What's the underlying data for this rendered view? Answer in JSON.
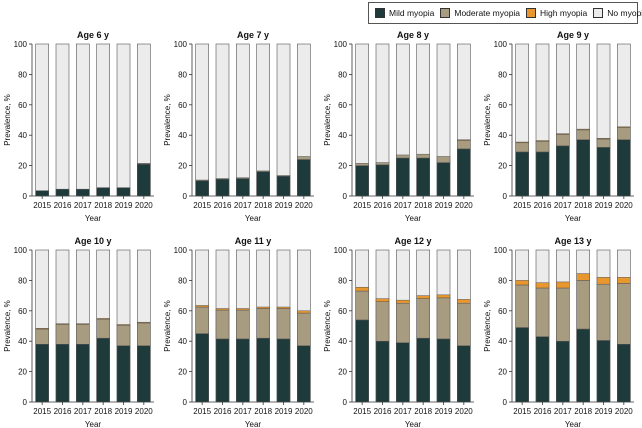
{
  "colors": {
    "mild": "#1f3a3a",
    "moderate": "#a89c80",
    "high": "#e8962e",
    "none": "#ececec",
    "stroke": "#555555"
  },
  "legend": [
    {
      "key": "mild",
      "label": "Mild myopia"
    },
    {
      "key": "moderate",
      "label": "Moderate myopia"
    },
    {
      "key": "high",
      "label": "High myopia"
    },
    {
      "key": "none",
      "label": "No myopia"
    }
  ],
  "chart_data": [
    {
      "type": "bar",
      "stacked": true,
      "title": "Age 6 y",
      "xlabel": "Year",
      "ylabel": "Prevalence, %",
      "ylim": [
        0,
        100
      ],
      "yticks": [
        0,
        20,
        40,
        60,
        80,
        100
      ],
      "categories": [
        "2015",
        "2016",
        "2017",
        "2018",
        "2019",
        "2020"
      ],
      "series": [
        {
          "name": "Mild myopia",
          "key": "mild",
          "values": [
            3.5,
            4.5,
            4.5,
            5.5,
            5.5,
            21
          ]
        },
        {
          "name": "Moderate myopia",
          "key": "moderate",
          "values": [
            0,
            0,
            0,
            0,
            0,
            0.5
          ]
        },
        {
          "name": "High myopia",
          "key": "high",
          "values": [
            0,
            0,
            0,
            0,
            0,
            0
          ]
        }
      ]
    },
    {
      "type": "bar",
      "stacked": true,
      "title": "Age 7 y",
      "xlabel": "Year",
      "ylabel": "Prevalence, %",
      "ylim": [
        0,
        100
      ],
      "yticks": [
        0,
        20,
        40,
        60,
        80,
        100
      ],
      "categories": [
        "2015",
        "2016",
        "2017",
        "2018",
        "2019",
        "2020"
      ],
      "series": [
        {
          "name": "Mild myopia",
          "key": "mild",
          "values": [
            10,
            11,
            11.5,
            16,
            13,
            24
          ]
        },
        {
          "name": "Moderate myopia",
          "key": "moderate",
          "values": [
            0.5,
            0.5,
            0.5,
            0.5,
            0.5,
            2
          ]
        },
        {
          "name": "High myopia",
          "key": "high",
          "values": [
            0,
            0,
            0,
            0,
            0,
            0
          ]
        }
      ]
    },
    {
      "type": "bar",
      "stacked": true,
      "title": "Age 8 y",
      "xlabel": "Year",
      "ylabel": "Prevalence, %",
      "ylim": [
        0,
        100
      ],
      "yticks": [
        0,
        20,
        40,
        60,
        80,
        100
      ],
      "categories": [
        "2015",
        "2016",
        "2017",
        "2018",
        "2019",
        "2020"
      ],
      "series": [
        {
          "name": "Mild myopia",
          "key": "mild",
          "values": [
            20,
            20.5,
            25,
            25,
            22,
            31
          ]
        },
        {
          "name": "Moderate myopia",
          "key": "moderate",
          "values": [
            1.5,
            1.5,
            2,
            2.5,
            4,
            5.5
          ]
        },
        {
          "name": "High myopia",
          "key": "high",
          "values": [
            0,
            0,
            0,
            0,
            0,
            0.5
          ]
        }
      ]
    },
    {
      "type": "bar",
      "stacked": true,
      "title": "Age 9 y",
      "xlabel": "Year",
      "ylabel": "Prevalence, %",
      "ylim": [
        0,
        100
      ],
      "yticks": [
        0,
        20,
        40,
        60,
        80,
        100
      ],
      "categories": [
        "2015",
        "2016",
        "2017",
        "2018",
        "2019",
        "2020"
      ],
      "series": [
        {
          "name": "Mild myopia",
          "key": "mild",
          "values": [
            29,
            29,
            33,
            37,
            32,
            37
          ]
        },
        {
          "name": "Moderate myopia",
          "key": "moderate",
          "values": [
            6,
            7,
            7.5,
            6.5,
            5.5,
            8
          ]
        },
        {
          "name": "High myopia",
          "key": "high",
          "values": [
            0.5,
            0.5,
            0.5,
            0.5,
            0.5,
            0.5
          ]
        }
      ]
    },
    {
      "type": "bar",
      "stacked": true,
      "title": "Age 10 y",
      "xlabel": "Year",
      "ylabel": "Prevalence, %",
      "ylim": [
        0,
        100
      ],
      "yticks": [
        0,
        20,
        40,
        60,
        80,
        100
      ],
      "categories": [
        "2015",
        "2016",
        "2017",
        "2018",
        "2019",
        "2020"
      ],
      "series": [
        {
          "name": "Mild myopia",
          "key": "mild",
          "values": [
            38,
            38,
            38,
            42,
            37,
            37
          ]
        },
        {
          "name": "Moderate myopia",
          "key": "moderate",
          "values": [
            10,
            13,
            13,
            12.5,
            13.5,
            15
          ]
        },
        {
          "name": "High myopia",
          "key": "high",
          "values": [
            0.5,
            0.5,
            0.5,
            0.5,
            0.5,
            0.5
          ]
        }
      ]
    },
    {
      "type": "bar",
      "stacked": true,
      "title": "Age 11 y",
      "xlabel": "Year",
      "ylabel": "Prevalence, %",
      "ylim": [
        0,
        100
      ],
      "yticks": [
        0,
        20,
        40,
        60,
        80,
        100
      ],
      "categories": [
        "2015",
        "2016",
        "2017",
        "2018",
        "2019",
        "2020"
      ],
      "series": [
        {
          "name": "Mild myopia",
          "key": "mild",
          "values": [
            45,
            41.5,
            41.5,
            42,
            41.5,
            37
          ]
        },
        {
          "name": "Moderate myopia",
          "key": "moderate",
          "values": [
            17.5,
            19,
            19,
            19.5,
            20,
            21.5
          ]
        },
        {
          "name": "High myopia",
          "key": "high",
          "values": [
            1,
            1,
            1,
            1,
            1,
            1.5
          ]
        }
      ]
    },
    {
      "type": "bar",
      "stacked": true,
      "title": "Age 12 y",
      "xlabel": "Year",
      "ylabel": "Prevalence, %",
      "ylim": [
        0,
        100
      ],
      "yticks": [
        0,
        20,
        40,
        60,
        80,
        100
      ],
      "categories": [
        "2015",
        "2016",
        "2017",
        "2018",
        "2019",
        "2020"
      ],
      "series": [
        {
          "name": "Mild myopia",
          "key": "mild",
          "values": [
            54,
            40,
            39,
            42,
            41.5,
            37
          ]
        },
        {
          "name": "Moderate myopia",
          "key": "moderate",
          "values": [
            19,
            26,
            26,
            26,
            27,
            28
          ]
        },
        {
          "name": "High myopia",
          "key": "high",
          "values": [
            2.5,
            2,
            2,
            2,
            2,
            2.5
          ]
        }
      ]
    },
    {
      "type": "bar",
      "stacked": true,
      "title": "Age 13 y",
      "xlabel": "Year",
      "ylabel": "Prevalence, %",
      "ylim": [
        0,
        100
      ],
      "yticks": [
        0,
        20,
        40,
        60,
        80,
        100
      ],
      "categories": [
        "2015",
        "2016",
        "2017",
        "2018",
        "2019",
        "2020"
      ],
      "series": [
        {
          "name": "Mild myopia",
          "key": "mild",
          "values": [
            49,
            43,
            40,
            48,
            40.5,
            38
          ]
        },
        {
          "name": "Moderate myopia",
          "key": "moderate",
          "values": [
            28,
            32,
            35,
            32,
            37,
            40
          ]
        },
        {
          "name": "High myopia",
          "key": "high",
          "values": [
            3,
            3.5,
            4,
            4.5,
            4.5,
            4
          ]
        }
      ]
    }
  ]
}
